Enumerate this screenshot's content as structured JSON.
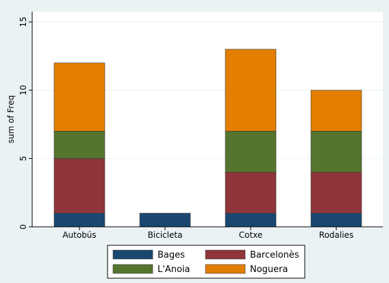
{
  "chart_data": {
    "type": "bar",
    "stacked": true,
    "categories": [
      "Autobús",
      "Bicicleta",
      "Cotxe",
      "Rodalies"
    ],
    "series": [
      {
        "name": "Bages",
        "color": "#1a476f",
        "values": [
          1,
          1,
          1,
          1
        ]
      },
      {
        "name": "Barcelonès",
        "color": "#90353b",
        "values": [
          4,
          0,
          3,
          3
        ]
      },
      {
        "name": "L'Anoia",
        "color": "#55752f",
        "values": [
          2,
          0,
          3,
          3
        ]
      },
      {
        "name": "Noguera",
        "color": "#e37e00",
        "values": [
          5,
          0,
          6,
          3
        ]
      }
    ],
    "ylabel": "sum of Freq",
    "xlabel": "",
    "title": "",
    "ylim": [
      0,
      15
    ],
    "yticks": [
      0,
      5,
      10,
      15
    ],
    "grid": true,
    "legend": "bottom"
  }
}
